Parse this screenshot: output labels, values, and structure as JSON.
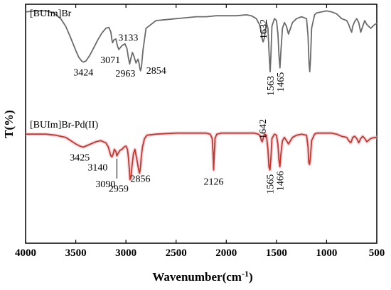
{
  "chart_data": {
    "type": "line",
    "xlabel": "Wavenumber(cm",
    "xlabel_sup": "-1",
    "xlabel_close": ")",
    "ylabel": "T(%)",
    "xlim": [
      4000,
      500
    ],
    "x_reversed": true,
    "xticks": [
      4000,
      3500,
      3000,
      2500,
      2000,
      1500,
      1000,
      500
    ],
    "yticks_shown": false,
    "grid": false,
    "legend": "none",
    "series": [
      {
        "name": "[BUIm]Br",
        "color": "#6b6b6b",
        "x": [
          4000,
          3900,
          3800,
          3720,
          3650,
          3600,
          3550,
          3500,
          3470,
          3440,
          3424,
          3400,
          3360,
          3320,
          3280,
          3240,
          3200,
          3170,
          3150,
          3140,
          3133,
          3120,
          3100,
          3085,
          3071,
          3055,
          3040,
          3010,
          2990,
          2975,
          2963,
          2950,
          2935,
          2920,
          2900,
          2880,
          2870,
          2860,
          2854,
          2845,
          2830,
          2800,
          2700,
          2600,
          2500,
          2400,
          2300,
          2200,
          2100,
          2000,
          1900,
          1800,
          1750,
          1700,
          1670,
          1650,
          1640,
          1632,
          1620,
          1600,
          1585,
          1575,
          1563,
          1555,
          1545,
          1520,
          1500,
          1485,
          1475,
          1465,
          1455,
          1440,
          1420,
          1400,
          1380,
          1360,
          1340,
          1300,
          1250,
          1200,
          1185,
          1175,
          1168,
          1160,
          1150,
          1120,
          1100,
          1050,
          1000,
          950,
          900,
          850,
          800,
          780,
          760,
          750,
          740,
          720,
          700,
          680,
          660,
          640,
          620,
          600,
          560,
          520,
          500
        ],
        "y": [
          0.95,
          0.96,
          0.96,
          0.94,
          0.88,
          0.8,
          0.68,
          0.55,
          0.48,
          0.44,
          0.43,
          0.44,
          0.5,
          0.58,
          0.66,
          0.73,
          0.78,
          0.79,
          0.74,
          0.66,
          0.63,
          0.66,
          0.67,
          0.6,
          0.56,
          0.58,
          0.6,
          0.62,
          0.57,
          0.47,
          0.41,
          0.47,
          0.53,
          0.49,
          0.42,
          0.46,
          0.42,
          0.36,
          0.34,
          0.38,
          0.55,
          0.78,
          0.86,
          0.87,
          0.88,
          0.89,
          0.9,
          0.9,
          0.91,
          0.91,
          0.91,
          0.92,
          0.91,
          0.88,
          0.82,
          0.74,
          0.66,
          0.64,
          0.68,
          0.84,
          0.78,
          0.55,
          0.33,
          0.5,
          0.8,
          0.88,
          0.86,
          0.72,
          0.5,
          0.37,
          0.55,
          0.78,
          0.84,
          0.8,
          0.72,
          0.78,
          0.84,
          0.88,
          0.9,
          0.88,
          0.7,
          0.42,
          0.33,
          0.46,
          0.78,
          0.92,
          0.94,
          0.95,
          0.96,
          0.95,
          0.93,
          0.88,
          0.86,
          0.82,
          0.76,
          0.74,
          0.8,
          0.85,
          0.88,
          0.84,
          0.74,
          0.8,
          0.86,
          0.82,
          0.78,
          0.82,
          0.83
        ]
      },
      {
        "name": "[BUIm]Br-Pd(II)",
        "color": "#c0392b",
        "x": [
          4000,
          3800,
          3700,
          3600,
          3550,
          3500,
          3460,
          3425,
          3400,
          3350,
          3300,
          3250,
          3200,
          3175,
          3160,
          3150,
          3140,
          3130,
          3115,
          3100,
          3090,
          3080,
          3060,
          3040,
          3020,
          3000,
          2985,
          2975,
          2965,
          2959,
          2950,
          2940,
          2925,
          2910,
          2890,
          2875,
          2866,
          2860,
          2856,
          2848,
          2835,
          2815,
          2790,
          2700,
          2500,
          2300,
          2200,
          2160,
          2140,
          2132,
          2126,
          2120,
          2112,
          2095,
          2050,
          1900,
          1800,
          1720,
          1680,
          1660,
          1650,
          1642,
          1635,
          1620,
          1600,
          1585,
          1575,
          1565,
          1555,
          1545,
          1520,
          1500,
          1485,
          1475,
          1466,
          1455,
          1440,
          1420,
          1400,
          1380,
          1360,
          1340,
          1300,
          1250,
          1200,
          1185,
          1178,
          1170,
          1162,
          1150,
          1120,
          1100,
          1050,
          1000,
          950,
          900,
          850,
          800,
          780,
          760,
          750,
          740,
          720,
          700,
          680,
          660,
          640,
          620,
          600,
          560,
          520,
          500
        ],
        "y": [
          0.94,
          0.94,
          0.93,
          0.91,
          0.88,
          0.85,
          0.83,
          0.82,
          0.83,
          0.85,
          0.87,
          0.88,
          0.86,
          0.82,
          0.77,
          0.74,
          0.73,
          0.75,
          0.8,
          0.78,
          0.74,
          0.76,
          0.79,
          0.8,
          0.82,
          0.83,
          0.8,
          0.72,
          0.6,
          0.52,
          0.54,
          0.64,
          0.76,
          0.8,
          0.7,
          0.62,
          0.58,
          0.6,
          0.63,
          0.72,
          0.82,
          0.9,
          0.93,
          0.94,
          0.95,
          0.95,
          0.95,
          0.94,
          0.9,
          0.76,
          0.61,
          0.74,
          0.9,
          0.94,
          0.95,
          0.95,
          0.95,
          0.95,
          0.94,
          0.92,
          0.88,
          0.87,
          0.89,
          0.94,
          0.93,
          0.8,
          0.64,
          0.61,
          0.72,
          0.9,
          0.94,
          0.93,
          0.84,
          0.7,
          0.64,
          0.76,
          0.88,
          0.91,
          0.88,
          0.85,
          0.88,
          0.91,
          0.93,
          0.94,
          0.93,
          0.82,
          0.68,
          0.66,
          0.72,
          0.88,
          0.94,
          0.95,
          0.95,
          0.95,
          0.95,
          0.94,
          0.92,
          0.91,
          0.88,
          0.86,
          0.88,
          0.91,
          0.92,
          0.9,
          0.86,
          0.9,
          0.92,
          0.9,
          0.87,
          0.9,
          0.91,
          0.91
        ]
      }
    ],
    "annotations": [
      {
        "series": 0,
        "text": "3424",
        "x": 3424,
        "orient": "h",
        "dx": 0,
        "dy": 19
      },
      {
        "series": 0,
        "text": "3133",
        "x": 3133,
        "orient": "h",
        "dx": 22,
        "dy": -3
      },
      {
        "series": 0,
        "text": "3071",
        "x": 3071,
        "orient": "h",
        "dx": -12,
        "dy": 19
      },
      {
        "series": 0,
        "text": "2963",
        "x": 2963,
        "orient": "h",
        "dx": -6,
        "dy": 18
      },
      {
        "series": 0,
        "text": "2854",
        "x": 2854,
        "orient": "h",
        "dx": 22,
        "dy": 4
      },
      {
        "series": 0,
        "text": "1632",
        "x": 1632,
        "orient": "v",
        "dx": 0,
        "dy": -4
      },
      {
        "series": 0,
        "text": "1563",
        "x": 1563,
        "orient": "v",
        "dx": 0,
        "dy": 4
      },
      {
        "series": 0,
        "text": "1465",
        "x": 1465,
        "orient": "v",
        "dx": 0,
        "dy": 4
      },
      {
        "series": 1,
        "text": "3425",
        "x": 3425,
        "orient": "h",
        "dx": -5,
        "dy": 19
      },
      {
        "series": 1,
        "text": "3140",
        "x": 3140,
        "orient": "h",
        "dx": -20,
        "dy": 19
      },
      {
        "series": 1,
        "text": "3090",
        "x": 3090,
        "orient": "h",
        "dx": -16,
        "dy": 44,
        "leader": true
      },
      {
        "series": 1,
        "text": "2959",
        "x": 2959,
        "orient": "h",
        "dx": -16,
        "dy": 17
      },
      {
        "series": 1,
        "text": "2856",
        "x": 2856,
        "orient": "h",
        "dx": 0,
        "dy": 20
      },
      {
        "series": 1,
        "text": "2126",
        "x": 2126,
        "orient": "h",
        "dx": 0,
        "dy": 21
      },
      {
        "series": 1,
        "text": "1642",
        "x": 1642,
        "orient": "v",
        "dx": 0,
        "dy": -8
      },
      {
        "series": 1,
        "text": "1565",
        "x": 1565,
        "orient": "v",
        "dx": 0,
        "dy": 4
      },
      {
        "series": 1,
        "text": "1466",
        "x": 1466,
        "orient": "v",
        "dx": 0,
        "dy": 4
      }
    ]
  }
}
